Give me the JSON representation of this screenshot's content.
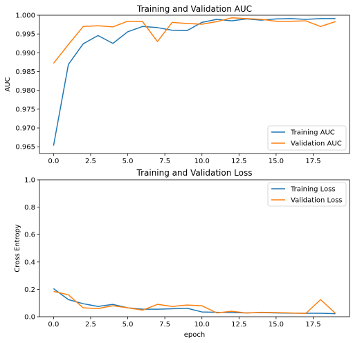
{
  "chart_data": [
    {
      "type": "line",
      "title": "Training and Validation AUC",
      "xlabel": "",
      "ylabel": "AUC",
      "xlim": [
        -0.95,
        19.95
      ],
      "ylim": [
        0.9632,
        1.0
      ],
      "xticks": [
        0.0,
        2.5,
        5.0,
        7.5,
        10.0,
        12.5,
        15.0,
        17.5
      ],
      "xtick_labels": [
        "0.0",
        "2.5",
        "5.0",
        "7.5",
        "10.0",
        "12.5",
        "15.0",
        "17.5"
      ],
      "yticks": [
        0.965,
        0.97,
        0.975,
        0.98,
        0.985,
        0.99,
        0.995,
        1.0
      ],
      "ytick_labels": [
        "0.965",
        "0.970",
        "0.975",
        "0.980",
        "0.985",
        "0.990",
        "0.995",
        "1.000"
      ],
      "grid": false,
      "legend_position": "lower-right",
      "x": [
        0,
        1,
        2,
        3,
        4,
        5,
        6,
        7,
        8,
        9,
        10,
        11,
        12,
        13,
        14,
        15,
        16,
        17,
        18,
        19
      ],
      "series": [
        {
          "name": "Training AUC",
          "color": "#1f77b4",
          "values": [
            0.9653,
            0.9869,
            0.9924,
            0.9946,
            0.9925,
            0.9956,
            0.997,
            0.9967,
            0.996,
            0.9959,
            0.9981,
            0.9989,
            0.9985,
            0.999,
            0.9987,
            0.999,
            0.9991,
            0.9989,
            0.9991,
            0.9991
          ]
        },
        {
          "name": "Validation AUC",
          "color": "#ff7f0e",
          "values": [
            0.9872,
            0.9922,
            0.997,
            0.9972,
            0.9969,
            0.9984,
            0.9983,
            0.993,
            0.9981,
            0.9978,
            0.9976,
            0.9983,
            0.9993,
            0.9991,
            0.9989,
            0.9984,
            0.9984,
            0.9985,
            0.997,
            0.9983
          ]
        }
      ]
    },
    {
      "type": "line",
      "title": "Training and Validation Loss",
      "xlabel": "epoch",
      "ylabel": "Cross Entropy",
      "xlim": [
        -0.95,
        19.95
      ],
      "ylim": [
        0.0,
        1.0
      ],
      "xticks": [
        0.0,
        2.5,
        5.0,
        7.5,
        10.0,
        12.5,
        15.0,
        17.5
      ],
      "xtick_labels": [
        "0.0",
        "2.5",
        "5.0",
        "7.5",
        "10.0",
        "12.5",
        "15.0",
        "17.5"
      ],
      "yticks": [
        0.0,
        0.2,
        0.4,
        0.6,
        0.8,
        1.0
      ],
      "ytick_labels": [
        "0.0",
        "0.2",
        "0.4",
        "0.6",
        "0.8",
        "1.0"
      ],
      "grid": false,
      "legend_position": "upper-right",
      "x": [
        0,
        1,
        2,
        3,
        4,
        5,
        6,
        7,
        8,
        9,
        10,
        11,
        12,
        13,
        14,
        15,
        16,
        17,
        18,
        19
      ],
      "series": [
        {
          "name": "Training Loss",
          "color": "#1f77b4",
          "values": [
            0.205,
            0.125,
            0.095,
            0.075,
            0.09,
            0.065,
            0.055,
            0.055,
            0.058,
            0.062,
            0.035,
            0.032,
            0.03,
            0.028,
            0.03,
            0.028,
            0.026,
            0.025,
            0.025,
            0.022
          ]
        },
        {
          "name": "Validation Loss",
          "color": "#ff7f0e",
          "values": [
            0.185,
            0.16,
            0.065,
            0.06,
            0.08,
            0.065,
            0.048,
            0.09,
            0.075,
            0.085,
            0.08,
            0.028,
            0.04,
            0.027,
            0.032,
            0.03,
            0.027,
            0.024,
            0.125,
            0.025
          ]
        }
      ]
    }
  ]
}
